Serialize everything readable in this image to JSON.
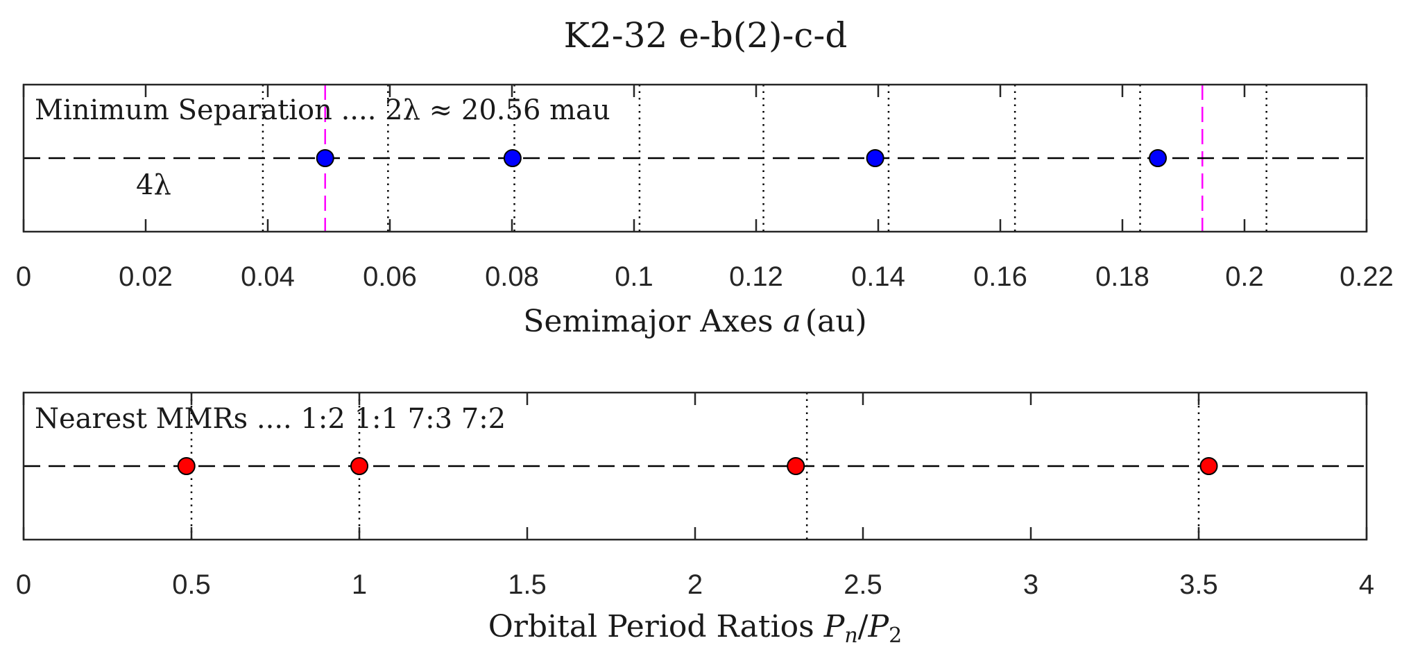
{
  "figure_title": "K2-32  e-b(2)-c-d",
  "chart_data": [
    {
      "type": "scatter",
      "name": "semimajor-axes",
      "xlabel_text": "Semimajor Axes ",
      "xlabel_var": "a",
      "xlabel_unit": "(au)",
      "xlim": [
        0,
        0.22
      ],
      "ylim": [
        0,
        2
      ],
      "xticks": [
        0,
        0.02,
        0.04,
        0.06,
        0.08,
        0.1,
        0.12,
        0.14,
        0.16,
        0.18,
        0.2,
        0.22
      ],
      "xtick_labels": [
        "0",
        "0.02",
        "0.04",
        "0.06",
        "0.08",
        "0.1",
        "0.12",
        "0.14",
        "0.16",
        "0.18",
        "0.2",
        "0.22"
      ],
      "annotation": "Minimum Separation .... 2λ ≈ 20.56 mau",
      "annotation_2": "4λ",
      "baseline_y": 1,
      "points_x": [
        0.0494,
        0.0801,
        0.1395,
        0.1858
      ],
      "point_color": "#0000ff",
      "dotted_vlines_x": [
        0.0392,
        0.0597,
        0.0804,
        0.1009,
        0.1212,
        0.1417,
        0.1624,
        0.1829,
        0.2036
      ],
      "dotted_color": "#000000",
      "dashed_magenta_x": [
        0.0494,
        0.1931
      ],
      "magenta_color": "#ff00ff"
    },
    {
      "type": "scatter",
      "name": "period-ratios",
      "xlabel_text": "Orbital Period Ratios ",
      "xlabel_var": "P",
      "xlabel_sub1": "n",
      "xlabel_slash": "/",
      "xlabel_sub2": "2",
      "xlim": [
        0,
        4
      ],
      "ylim": [
        0,
        2
      ],
      "xticks": [
        0,
        0.5,
        1,
        1.5,
        2,
        2.5,
        3,
        3.5,
        4
      ],
      "xtick_labels": [
        "0",
        "0.5",
        "1",
        "1.5",
        "2",
        "2.5",
        "3",
        "3.5",
        "4"
      ],
      "annotation": "Nearest MMRs ....  1:2  1:1  7:3  7:2",
      "baseline_y": 1,
      "points_x": [
        0.485,
        1.0,
        2.3,
        3.53
      ],
      "point_color": "#ff0000",
      "dotted_vlines_x": [
        0.5,
        1.0,
        2.333,
        3.5
      ],
      "dotted_color": "#000000"
    }
  ]
}
